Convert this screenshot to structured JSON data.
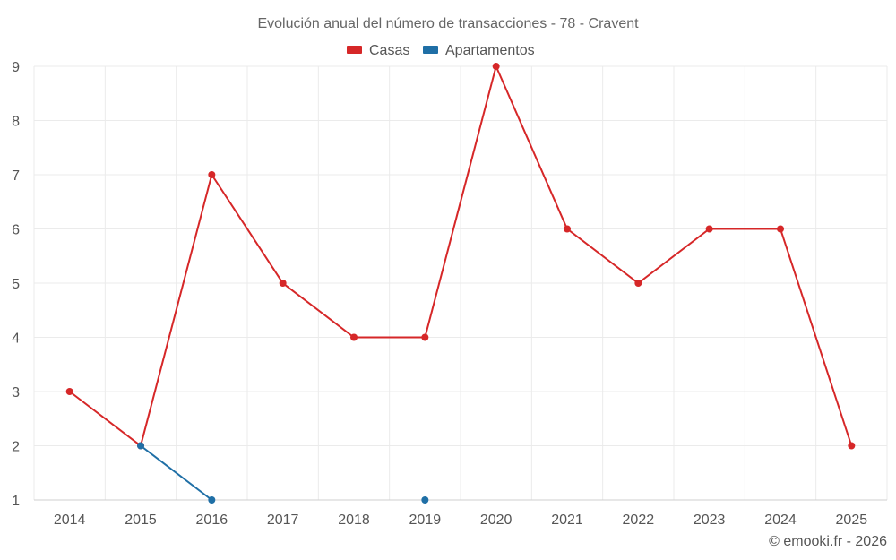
{
  "chart_data": {
    "type": "line",
    "title": "Evolución anual del número de transacciones - 78 - Cravent",
    "categories": [
      "2014",
      "2015",
      "2016",
      "2017",
      "2018",
      "2019",
      "2020",
      "2021",
      "2022",
      "2023",
      "2024",
      "2025"
    ],
    "series": [
      {
        "name": "Casas",
        "color": "#d62728",
        "values": [
          3,
          2,
          7,
          5,
          4,
          4,
          9,
          6,
          5,
          6,
          6,
          2
        ]
      },
      {
        "name": "Apartamentos",
        "color": "#1f6fa6",
        "values": [
          null,
          2,
          1,
          null,
          null,
          1,
          null,
          null,
          null,
          null,
          null,
          null
        ]
      }
    ],
    "ylim": [
      1,
      9
    ],
    "yticks": [
      1,
      2,
      3,
      4,
      5,
      6,
      7,
      8,
      9
    ],
    "grid": true,
    "legend": "top-center",
    "xlabel": "",
    "ylabel": ""
  },
  "credit": "© emooki.fr - 2026"
}
